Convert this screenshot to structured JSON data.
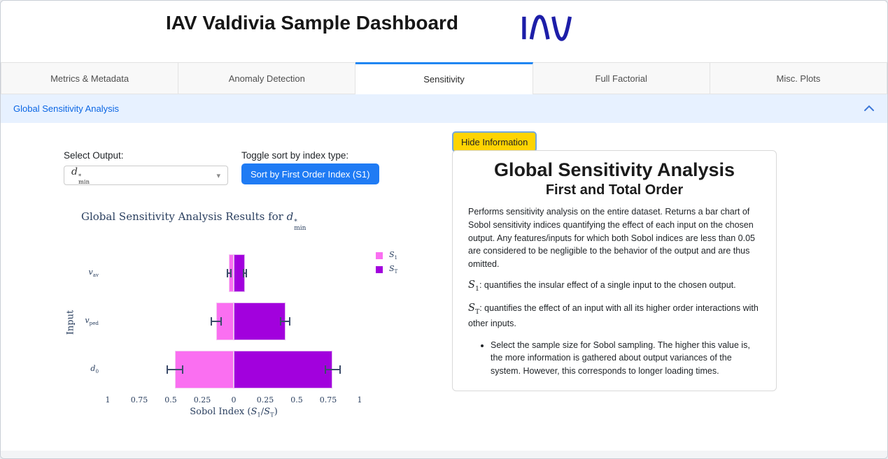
{
  "header": {
    "title": "IAV Valdivia Sample Dashboard",
    "logo_name": "IAV",
    "logo_color": "#1d1ea8"
  },
  "tabs": [
    {
      "label": "Metrics & Metadata",
      "active": false
    },
    {
      "label": "Anomaly Detection",
      "active": false
    },
    {
      "label": "Sensitivity",
      "active": true
    },
    {
      "label": "Full Factorial",
      "active": false
    },
    {
      "label": "Misc. Plots",
      "active": false
    }
  ],
  "tab_active_color": "#2086f2",
  "accordion": {
    "title": "Global Sensitivity Analysis",
    "state": "expanded",
    "chevron_icon": "chevron-up",
    "background": "#e7f1ff",
    "text_color": "#0b66e4"
  },
  "controls": {
    "select_output_label": "Select Output:",
    "select_output_value_text": "d*_min",
    "select_output_value": {
      "main": "d",
      "sup": "*",
      "sub": "min"
    },
    "toggle_label": "Toggle sort by index type:",
    "sort_button_label": "Sort by First Order Index (S1)",
    "sort_button_color": "#1f7bf4"
  },
  "info_panel": {
    "hide_button_label": "Hide Information",
    "hide_button_color": "#fed402",
    "card": {
      "title": "Global Sensitivity Analysis",
      "subtitle": "First and Total Order",
      "paragraph1": "Performs sensitivity analysis on the entire dataset. Returns a bar chart of Sobol sensitivity indices quantifying the effect of each input on the chosen output. Any features/inputs for which both Sobol indices are less than 0.05 are considered to be negligible to the behavior of the output and are thus omitted.",
      "s1_def": {
        "sym": {
          "main": "S",
          "sub": "1"
        },
        "text": ": quantifies the insular effect of a single input to the chosen output."
      },
      "st_def": {
        "sym": {
          "main": "S",
          "sub": "T"
        },
        "text": ": quantifies the effect of an input with all its higher order interactions with other inputs."
      },
      "bullets": [
        "Select the sample size for Sobol sampling. The higher this value is, the more information is gathered about output variances of the system. However, this corresponds to longer loading times."
      ]
    }
  },
  "chart_data": {
    "type": "bar",
    "orientation": "horizontal",
    "diverging": true,
    "title": "Global Sensitivity Analysis Results for d*_min",
    "title_prefix": "Global Sensitivity Analysis Results for ",
    "output_symbol": {
      "main": "d",
      "sup": "*",
      "sub": "min"
    },
    "xlabel": "Sobol Index (S1/ST)",
    "xlabel_parts": {
      "prefix": "Sobol Index (",
      "sym1": {
        "main": "S",
        "sub": "1"
      },
      "sep": "/",
      "sym2": {
        "main": "S",
        "sub": "T"
      },
      "suffix": ")"
    },
    "ylabel": "Input",
    "categories": [
      "v_av",
      "v_ped",
      "d_0"
    ],
    "category_parts": [
      {
        "main": "v",
        "sub": "av"
      },
      {
        "main": "v",
        "sub": "ped"
      },
      {
        "main": "d",
        "sub": "0"
      }
    ],
    "series": [
      {
        "name": "S1",
        "sym": {
          "main": "S",
          "sub": "1"
        },
        "direction": "left",
        "color": "#fa6ff1",
        "edge_color": "#f4c9f1",
        "values": [
          0.037,
          0.14,
          0.465
        ],
        "error": [
          0.02,
          0.046,
          0.067
        ]
      },
      {
        "name": "ST",
        "sym": {
          "main": "S",
          "sub": "T"
        },
        "direction": "right",
        "color": "#a201dd",
        "edge_color": "#e0b6ee",
        "values": [
          0.088,
          0.41,
          0.785
        ],
        "error": [
          0.015,
          0.042,
          0.065
        ]
      }
    ],
    "xlim": [
      -1,
      1
    ],
    "x_tick_values": [
      -1,
      -0.75,
      -0.5,
      -0.25,
      0,
      0.25,
      0.5,
      0.75,
      1
    ],
    "x_ticks": [
      "1",
      "0.75",
      "0.5",
      "0.25",
      "0",
      "0.25",
      "0.5",
      "0.75",
      "1"
    ],
    "legend_position": "top-right",
    "grid": false,
    "error_color": "#3d4d6b",
    "text_color": "#2a3f5f"
  }
}
